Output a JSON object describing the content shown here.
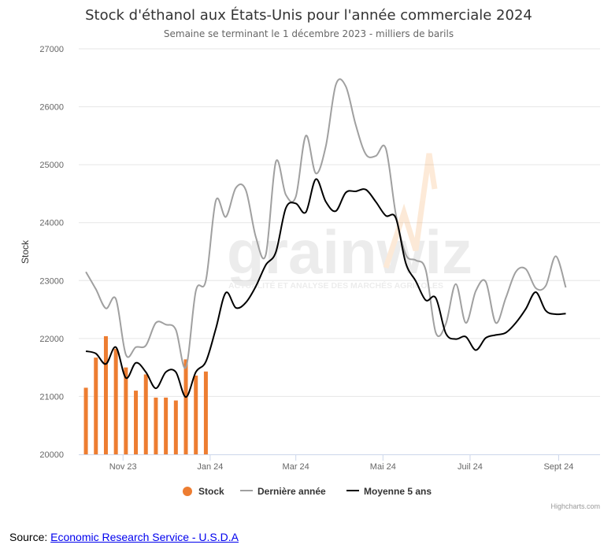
{
  "chart": {
    "title": "Stock d'éthanol aux États-Unis pour l'année commerciale 2024",
    "subtitle": "Semaine se terminant le 1 décembre 2023 - milliers de barils",
    "credits": "Highcharts.com"
  },
  "watermark": {
    "name": "grainwiz",
    "tagline": "ACTUALITÉ ET ANALYSE DES MARCHÉS AGRICOLES"
  },
  "source": {
    "label": "Source:",
    "link_text": "Economic Research Service - U.S.D.A"
  },
  "colors": {
    "stock": "#ed7d31",
    "previous_year": "#a0a0a0",
    "avg5": "#000000",
    "grid": "#e6e6e6"
  },
  "chart_data": {
    "type": "bar",
    "title": "Stock d'éthanol aux États-Unis pour l'année commerciale 2024",
    "subtitle": "Semaine se terminant le 1 décembre 2023 - milliers de barils",
    "ylabel": "Stock",
    "ylim": [
      20000,
      27000
    ],
    "yticks": [
      "20000",
      "21000",
      "22000",
      "23000",
      "24000",
      "25000",
      "26000",
      "27000"
    ],
    "xlim": [
      "2023-10-01",
      "2024-09-30"
    ],
    "xticks": [
      {
        "label": "Nov 23",
        "date": "2023-11-01"
      },
      {
        "label": "Jan 24",
        "date": "2024-01-01"
      },
      {
        "label": "Mar 24",
        "date": "2024-03-01"
      },
      {
        "label": "Mai 24",
        "date": "2024-05-01"
      },
      {
        "label": "Juil 24",
        "date": "2024-07-01"
      },
      {
        "label": "Sept 24",
        "date": "2024-09-01"
      }
    ],
    "grid": true,
    "legend_position": "bottom-center",
    "series": [
      {
        "name": "Stock",
        "type": "bar",
        "color": "#ed7d31",
        "x": [
          "2023-10-06",
          "2023-10-13",
          "2023-10-20",
          "2023-10-27",
          "2023-11-03",
          "2023-11-10",
          "2023-11-17",
          "2023-11-24",
          "2023-12-01",
          "2023-12-08",
          "2023-12-15",
          "2023-12-22",
          "2023-12-29"
        ],
        "values": [
          21150,
          21670,
          22040,
          21820,
          21500,
          21100,
          21380,
          20980,
          20980,
          20930,
          21640,
          21360,
          21430
        ]
      },
      {
        "name": "Dernière année",
        "type": "line",
        "color": "#a0a0a0",
        "x": [
          "2023-10-06",
          "2023-10-13",
          "2023-10-20",
          "2023-10-27",
          "2023-11-03",
          "2023-11-10",
          "2023-11-17",
          "2023-11-24",
          "2023-12-01",
          "2023-12-08",
          "2023-12-15",
          "2023-12-22",
          "2023-12-29",
          "2024-01-05",
          "2024-01-12",
          "2024-01-19",
          "2024-01-26",
          "2024-02-02",
          "2024-02-09",
          "2024-02-16",
          "2024-02-23",
          "2024-03-01",
          "2024-03-08",
          "2024-03-15",
          "2024-03-22",
          "2024-03-29",
          "2024-04-05",
          "2024-04-12",
          "2024-04-19",
          "2024-04-26",
          "2024-05-03",
          "2024-05-10",
          "2024-05-17",
          "2024-05-24",
          "2024-05-31",
          "2024-06-07",
          "2024-06-14",
          "2024-06-21",
          "2024-06-28",
          "2024-07-05",
          "2024-07-12",
          "2024-07-19",
          "2024-07-26",
          "2024-08-02",
          "2024-08-09",
          "2024-08-16",
          "2024-08-23",
          "2024-08-30",
          "2024-09-06"
        ],
        "values": [
          23150,
          22850,
          22520,
          22680,
          21720,
          21850,
          21880,
          22270,
          22240,
          22150,
          21500,
          22820,
          23000,
          24380,
          24100,
          24600,
          24560,
          23750,
          23450,
          25050,
          24480,
          24450,
          25500,
          24850,
          25320,
          26380,
          26350,
          25680,
          25180,
          25150,
          25280,
          24150,
          23450,
          23350,
          23180,
          22100,
          22250,
          22940,
          22270,
          22820,
          22980,
          22270,
          22700,
          23150,
          23200,
          22870,
          22910,
          23420,
          22880
        ]
      },
      {
        "name": "Moyenne 5 ans",
        "type": "line",
        "color": "#000000",
        "x": [
          "2023-10-06",
          "2023-10-13",
          "2023-10-20",
          "2023-10-27",
          "2023-11-03",
          "2023-11-10",
          "2023-11-17",
          "2023-11-24",
          "2023-12-01",
          "2023-12-08",
          "2023-12-15",
          "2023-12-22",
          "2023-12-29",
          "2024-01-05",
          "2024-01-12",
          "2024-01-19",
          "2024-01-26",
          "2024-02-02",
          "2024-02-09",
          "2024-02-16",
          "2024-02-23",
          "2024-03-01",
          "2024-03-08",
          "2024-03-15",
          "2024-03-22",
          "2024-03-29",
          "2024-04-05",
          "2024-04-12",
          "2024-04-19",
          "2024-04-26",
          "2024-05-03",
          "2024-05-10",
          "2024-05-17",
          "2024-05-24",
          "2024-05-31",
          "2024-06-07",
          "2024-06-14",
          "2024-06-21",
          "2024-06-28",
          "2024-07-05",
          "2024-07-12",
          "2024-07-19",
          "2024-07-26",
          "2024-08-02",
          "2024-08-09",
          "2024-08-16",
          "2024-08-23",
          "2024-08-30",
          "2024-09-06"
        ],
        "values": [
          21780,
          21740,
          21560,
          21850,
          21320,
          21580,
          21420,
          21140,
          21420,
          21420,
          20990,
          21420,
          21600,
          22170,
          22790,
          22530,
          22620,
          22900,
          23270,
          23490,
          24250,
          24330,
          24180,
          24750,
          24360,
          24200,
          24520,
          24540,
          24570,
          24360,
          24120,
          24080,
          23300,
          22990,
          22660,
          22700,
          22090,
          21990,
          22030,
          21800,
          22010,
          22060,
          22100,
          22270,
          22510,
          22800,
          22480,
          22420,
          22430
        ]
      }
    ]
  }
}
